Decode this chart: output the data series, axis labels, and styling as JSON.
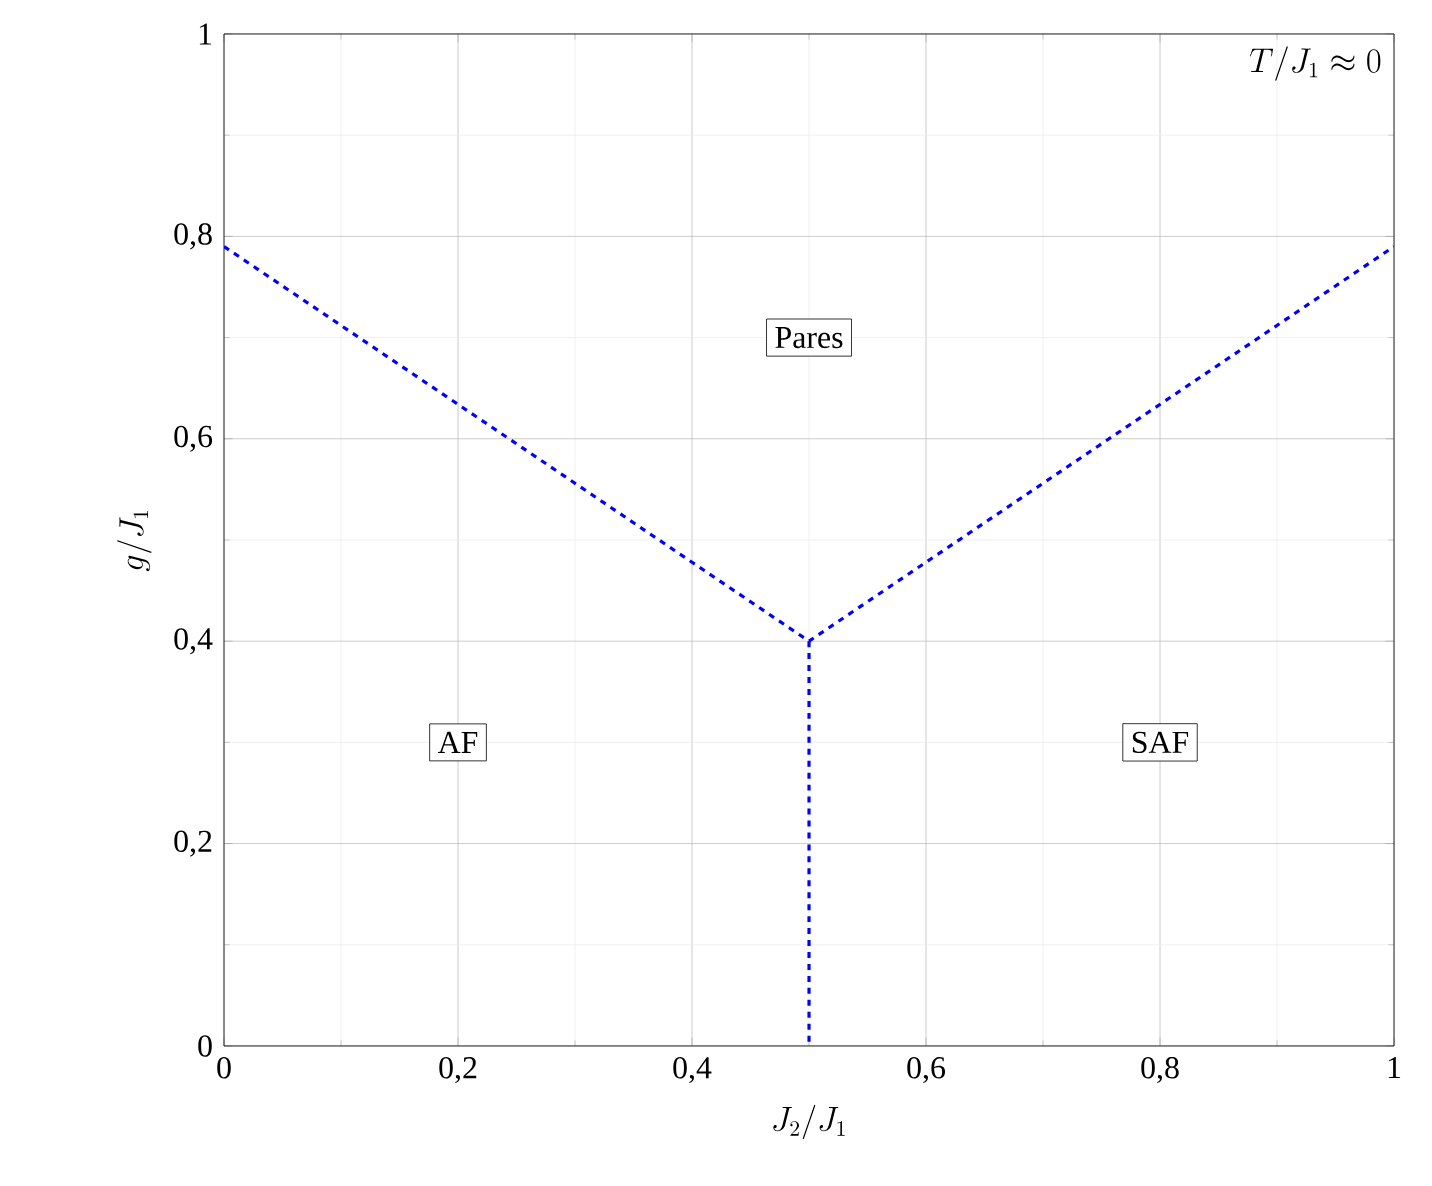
{
  "chart_data": {
    "type": "line",
    "xlabel": "J_2/J_1",
    "ylabel": "g/J_1",
    "xlim": [
      0,
      1
    ],
    "ylim": [
      0,
      1
    ],
    "xticks": [
      0,
      {
        "value": 0.2,
        "label": "0,2"
      },
      {
        "value": 0.4,
        "label": "0,4"
      },
      {
        "value": 0.6,
        "label": "0,6"
      },
      {
        "value": 0.8,
        "label": "0,8"
      },
      1
    ],
    "yticks": [
      0,
      {
        "value": 0.2,
        "label": "0,2"
      },
      {
        "value": 0.4,
        "label": "0,4"
      },
      {
        "value": 0.6,
        "label": "0,6"
      },
      {
        "value": 0.8,
        "label": "0,8"
      },
      1
    ],
    "grid": true,
    "marker": "none",
    "line_style": "dashed",
    "series": [
      {
        "color": "#0000ff",
        "x": [
          0,
          0.5,
          1
        ],
        "values": [
          0.79,
          0.4,
          0.79
        ]
      },
      {
        "color": "#0000ff",
        "x": [
          0.5,
          0.5
        ],
        "values": [
          0.4,
          0
        ]
      }
    ],
    "annotations": [
      {
        "text": "Pares",
        "x": 0.5,
        "y": 0.7
      },
      {
        "text": "AF",
        "x": 0.2,
        "y": 0.3
      },
      {
        "text": "SAF",
        "x": 0.8,
        "y": 0.3
      },
      "T/J_1 \\approx 0"
    ]
  }
}
